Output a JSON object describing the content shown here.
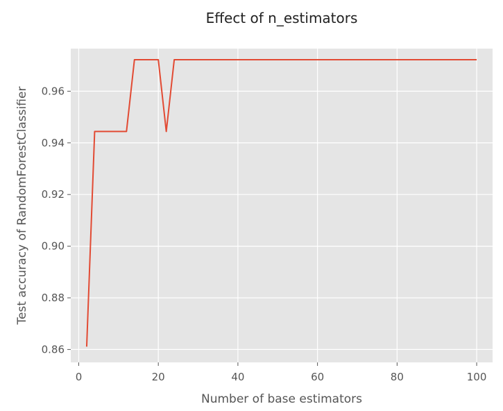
{
  "chart_data": {
    "type": "line",
    "title": "Effect of n_estimators",
    "xlabel": "Number of base estimators",
    "ylabel": "Test accuracy of RandomForestClassifier",
    "xlim": [
      -2,
      104
    ],
    "ylim": [
      0.855,
      0.9765
    ],
    "xticks": [
      0,
      20,
      40,
      60,
      80,
      100
    ],
    "yticks": [
      0.86,
      0.88,
      0.9,
      0.92,
      0.94,
      0.96
    ],
    "xtick_labels": [
      "0",
      "20",
      "40",
      "60",
      "80",
      "100"
    ],
    "ytick_labels": [
      "0.86",
      "0.88",
      "0.90",
      "0.92",
      "0.94",
      "0.96"
    ],
    "grid": true,
    "line_color": "#e24a33",
    "background_color": "#e5e5e5",
    "series": [
      {
        "x": [
          2,
          4,
          6,
          8,
          10,
          12,
          14,
          16,
          18,
          20,
          22,
          24,
          26,
          28,
          30,
          32,
          34,
          36,
          38,
          40,
          42,
          44,
          46,
          48,
          50,
          52,
          54,
          56,
          58,
          60,
          62,
          64,
          66,
          68,
          70,
          72,
          74,
          76,
          78,
          80,
          82,
          84,
          86,
          88,
          90,
          92,
          94,
          96,
          98,
          100
        ],
        "y": [
          0.8611,
          0.9444,
          0.9444,
          0.9444,
          0.9444,
          0.9444,
          0.9722,
          0.9722,
          0.9722,
          0.9722,
          0.9444,
          0.9722,
          0.9722,
          0.9722,
          0.9722,
          0.9722,
          0.9722,
          0.9722,
          0.9722,
          0.9722,
          0.9722,
          0.9722,
          0.9722,
          0.9722,
          0.9722,
          0.9722,
          0.9722,
          0.9722,
          0.9722,
          0.9722,
          0.9722,
          0.9722,
          0.9722,
          0.9722,
          0.9722,
          0.9722,
          0.9722,
          0.9722,
          0.9722,
          0.9722,
          0.9722,
          0.9722,
          0.9722,
          0.9722,
          0.9722,
          0.9722,
          0.9722,
          0.9722,
          0.9722,
          0.9722
        ]
      }
    ]
  }
}
